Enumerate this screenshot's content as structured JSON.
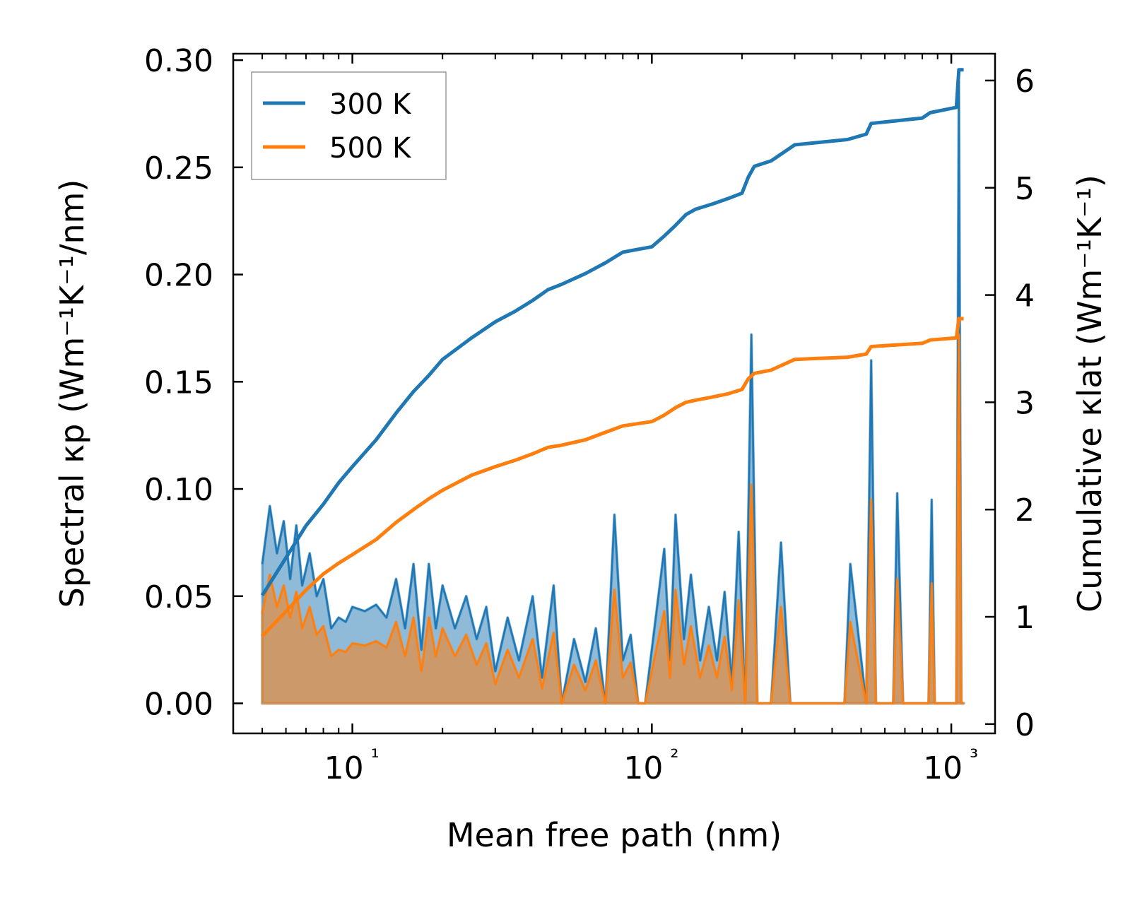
{
  "chart_data": {
    "type": "line",
    "xlabel": "Mean free path (nm)",
    "ylabel": "Spectral κp (Wm⁻¹K⁻¹/nm)",
    "ylabel_right": "Cumulative κlat (Wm⁻¹K⁻¹)",
    "xscale": "log",
    "xlim": [
      4.0,
      1400
    ],
    "ylim": [
      -0.014,
      0.303
    ],
    "y2lim": [
      -0.0867,
      6.25
    ],
    "xticks": [
      {
        "value": 10,
        "label": "10¹"
      },
      {
        "value": 100,
        "label": "10²"
      },
      {
        "value": 1000,
        "label": "10³"
      }
    ],
    "yticks": [
      {
        "value": 0.0,
        "label": "0.00"
      },
      {
        "value": 0.05,
        "label": "0.05"
      },
      {
        "value": 0.1,
        "label": "0.10"
      },
      {
        "value": 0.15,
        "label": "0.15"
      },
      {
        "value": 0.2,
        "label": "0.20"
      },
      {
        "value": 0.25,
        "label": "0.25"
      },
      {
        "value": 0.3,
        "label": "0.30"
      }
    ],
    "y2ticks": [
      {
        "value": 0,
        "label": "0"
      },
      {
        "value": 1,
        "label": "1"
      },
      {
        "value": 2,
        "label": "2"
      },
      {
        "value": 3,
        "label": "3"
      },
      {
        "value": 4,
        "label": "4"
      },
      {
        "value": 5,
        "label": "5"
      },
      {
        "value": 6,
        "label": "6"
      }
    ],
    "legend": {
      "position": "upper-left",
      "entries": [
        {
          "name": "300 K",
          "color": "#1f77b4"
        },
        {
          "name": "500 K",
          "color": "#ff7f0e"
        }
      ]
    },
    "series": [
      {
        "name": "300 K spectral",
        "axis": "left",
        "style": "filled",
        "color": "#1f77b4",
        "x": [
          5,
          5.3,
          5.6,
          5.9,
          6.2,
          6.5,
          6.8,
          7.2,
          7.6,
          8.0,
          8.5,
          9.0,
          9.5,
          10,
          11,
          12,
          13,
          14,
          15,
          16,
          17,
          18,
          19,
          20,
          22,
          24,
          26,
          28,
          30,
          33,
          36,
          40,
          43,
          47,
          50,
          55,
          60,
          65,
          70,
          75,
          80,
          85,
          90,
          95,
          110,
          115,
          120,
          128,
          135,
          145,
          155,
          165,
          175,
          185,
          195,
          205,
          215,
          225,
          250,
          270,
          290,
          300,
          440,
          460,
          520,
          540,
          560,
          640,
          660,
          690,
          840,
          860,
          880,
          1040,
          1060,
          1080,
          1100
        ],
        "y": [
          0.065,
          0.092,
          0.07,
          0.085,
          0.058,
          0.083,
          0.055,
          0.07,
          0.05,
          0.058,
          0.035,
          0.04,
          0.038,
          0.045,
          0.043,
          0.046,
          0.04,
          0.058,
          0.035,
          0.065,
          0.025,
          0.065,
          0.035,
          0.055,
          0.035,
          0.05,
          0.03,
          0.045,
          0.015,
          0.04,
          0.02,
          0.05,
          0.012,
          0.055,
          0.0,
          0.03,
          0.01,
          0.035,
          0.0,
          0.088,
          0.02,
          0.032,
          0.0,
          0.0,
          0.072,
          0.02,
          0.088,
          0.03,
          0.06,
          0.02,
          0.045,
          0.02,
          0.052,
          0.01,
          0.08,
          0.0,
          0.172,
          0.0,
          0.0,
          0.075,
          0.0,
          0.0,
          0.0,
          0.065,
          0.0,
          0.16,
          0.0,
          0.0,
          0.098,
          0.0,
          0.0,
          0.095,
          0.0,
          0.0,
          0.29,
          0.0,
          0.0
        ]
      },
      {
        "name": "500 K spectral",
        "axis": "left",
        "style": "filled",
        "color": "#ff7f0e",
        "x": [
          5,
          5.3,
          5.6,
          5.9,
          6.2,
          6.5,
          6.8,
          7.2,
          7.6,
          8.0,
          8.5,
          9.0,
          9.5,
          10,
          11,
          12,
          13,
          14,
          15,
          16,
          17,
          18,
          19,
          20,
          22,
          24,
          26,
          28,
          30,
          33,
          36,
          40,
          43,
          47,
          50,
          55,
          60,
          65,
          70,
          75,
          80,
          85,
          90,
          95,
          110,
          115,
          120,
          128,
          135,
          145,
          155,
          165,
          175,
          185,
          195,
          205,
          215,
          225,
          250,
          270,
          290,
          300,
          440,
          460,
          520,
          540,
          560,
          640,
          660,
          690,
          840,
          860,
          880,
          1040,
          1060,
          1080,
          1100
        ],
        "y": [
          0.042,
          0.06,
          0.045,
          0.055,
          0.04,
          0.052,
          0.035,
          0.045,
          0.032,
          0.036,
          0.022,
          0.025,
          0.024,
          0.028,
          0.027,
          0.029,
          0.026,
          0.038,
          0.022,
          0.04,
          0.015,
          0.04,
          0.022,
          0.035,
          0.022,
          0.032,
          0.018,
          0.028,
          0.009,
          0.025,
          0.012,
          0.03,
          0.007,
          0.033,
          0.0,
          0.018,
          0.006,
          0.02,
          0.0,
          0.053,
          0.012,
          0.019,
          0.0,
          0.0,
          0.043,
          0.012,
          0.053,
          0.018,
          0.036,
          0.012,
          0.027,
          0.012,
          0.031,
          0.006,
          0.048,
          0.0,
          0.102,
          0.0,
          0.0,
          0.045,
          0.0,
          0.0,
          0.0,
          0.038,
          0.0,
          0.095,
          0.0,
          0.0,
          0.058,
          0.0,
          0.0,
          0.056,
          0.0,
          0.0,
          0.172,
          0.0,
          0.0
        ]
      },
      {
        "name": "300 K",
        "axis": "right",
        "style": "line",
        "color": "#1f77b4",
        "x": [
          5,
          6,
          7,
          8,
          9,
          10,
          12,
          14,
          16,
          18,
          20,
          25,
          30,
          35,
          40,
          45,
          50,
          60,
          70,
          80,
          100,
          110,
          120,
          130,
          140,
          160,
          180,
          200,
          210,
          220,
          250,
          300,
          450,
          520,
          540,
          800,
          850,
          1040,
          1060,
          1100
        ],
        "y": [
          1.2,
          1.55,
          1.85,
          2.05,
          2.25,
          2.4,
          2.65,
          2.9,
          3.1,
          3.25,
          3.4,
          3.6,
          3.75,
          3.85,
          3.95,
          4.05,
          4.1,
          4.2,
          4.3,
          4.4,
          4.45,
          4.55,
          4.65,
          4.75,
          4.8,
          4.85,
          4.9,
          4.95,
          5.1,
          5.2,
          5.25,
          5.4,
          5.45,
          5.5,
          5.6,
          5.65,
          5.7,
          5.75,
          6.1,
          6.1
        ]
      },
      {
        "name": "500 K",
        "axis": "right",
        "style": "line",
        "color": "#ff7f0e",
        "x": [
          5,
          6,
          7,
          8,
          9,
          10,
          12,
          14,
          16,
          18,
          20,
          25,
          30,
          35,
          40,
          45,
          50,
          60,
          70,
          80,
          100,
          110,
          120,
          130,
          140,
          160,
          180,
          200,
          210,
          220,
          250,
          300,
          450,
          520,
          540,
          800,
          850,
          1040,
          1060,
          1100
        ],
        "y": [
          0.82,
          1.05,
          1.25,
          1.4,
          1.5,
          1.58,
          1.72,
          1.88,
          2.0,
          2.1,
          2.18,
          2.32,
          2.4,
          2.46,
          2.52,
          2.58,
          2.6,
          2.65,
          2.72,
          2.78,
          2.82,
          2.88,
          2.95,
          3.0,
          3.02,
          3.05,
          3.08,
          3.12,
          3.22,
          3.27,
          3.3,
          3.4,
          3.42,
          3.45,
          3.52,
          3.55,
          3.58,
          3.6,
          3.78,
          3.78
        ]
      }
    ]
  }
}
